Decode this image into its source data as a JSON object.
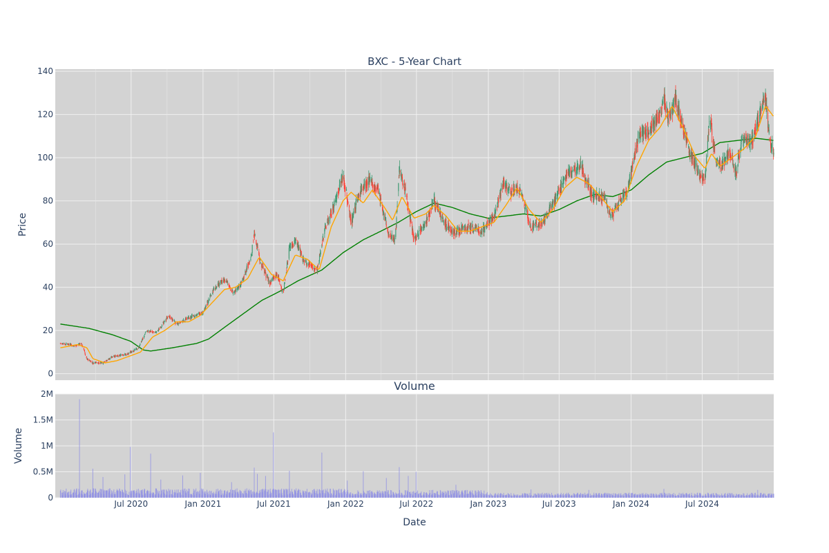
{
  "chart_data": [
    {
      "type": "candlestick",
      "title": "BXC - 5-Year Chart",
      "ylabel": "Price",
      "ylim": [
        -3,
        141
      ],
      "y_ticks": [
        0,
        20,
        40,
        60,
        80,
        100,
        120,
        140
      ],
      "x_range": [
        "2020-01-02",
        "2024-12-31"
      ],
      "grid": true,
      "legend": "none",
      "colors": {
        "increasing": "#3d9970",
        "decreasing": "#ff4136",
        "ma_short": "#ffa500",
        "ma_long": "#008000",
        "plot_bg": "#d3d3d3",
        "grid": "#f0f0f0"
      },
      "price_anchors": [
        [
          "2020-01-02",
          14
        ],
        [
          "2020-02-10",
          13
        ],
        [
          "2020-02-25",
          14
        ],
        [
          "2020-03-10",
          7
        ],
        [
          "2020-03-25",
          5
        ],
        [
          "2020-04-20",
          5
        ],
        [
          "2020-05-15",
          8
        ],
        [
          "2020-06-20",
          9
        ],
        [
          "2020-07-20",
          12
        ],
        [
          "2020-08-10",
          20
        ],
        [
          "2020-09-05",
          19
        ],
        [
          "2020-10-05",
          27
        ],
        [
          "2020-10-25",
          23
        ],
        [
          "2020-11-25",
          26
        ],
        [
          "2020-12-31",
          28
        ],
        [
          "2021-01-25",
          38
        ],
        [
          "2021-02-25",
          44
        ],
        [
          "2021-03-20",
          37
        ],
        [
          "2021-04-10",
          42
        ],
        [
          "2021-05-05",
          55
        ],
        [
          "2021-05-12",
          66
        ],
        [
          "2021-05-25",
          53
        ],
        [
          "2021-06-20",
          42
        ],
        [
          "2021-07-10",
          46
        ],
        [
          "2021-07-25",
          37
        ],
        [
          "2021-08-10",
          58
        ],
        [
          "2021-08-28",
          61
        ],
        [
          "2021-09-15",
          52
        ],
        [
          "2021-10-05",
          50
        ],
        [
          "2021-10-20",
          48
        ],
        [
          "2021-11-10",
          68
        ],
        [
          "2021-12-10",
          82
        ],
        [
          "2021-12-25",
          93
        ],
        [
          "2022-01-15",
          70
        ],
        [
          "2022-02-05",
          84
        ],
        [
          "2022-03-01",
          90
        ],
        [
          "2022-03-25",
          85
        ],
        [
          "2022-04-20",
          65
        ],
        [
          "2022-05-08",
          62
        ],
        [
          "2022-05-18",
          95
        ],
        [
          "2022-06-05",
          82
        ],
        [
          "2022-06-25",
          62
        ],
        [
          "2022-07-25",
          70
        ],
        [
          "2022-08-15",
          80
        ],
        [
          "2022-09-10",
          70
        ],
        [
          "2022-10-01",
          65
        ],
        [
          "2022-11-05",
          68
        ],
        [
          "2022-12-15",
          66
        ],
        [
          "2023-01-15",
          73
        ],
        [
          "2023-02-10",
          89
        ],
        [
          "2023-02-25",
          84
        ],
        [
          "2023-03-20",
          86
        ],
        [
          "2023-04-20",
          68
        ],
        [
          "2023-05-20",
          70
        ],
        [
          "2023-06-20",
          80
        ],
        [
          "2023-07-20",
          92
        ],
        [
          "2023-08-25",
          96
        ],
        [
          "2023-09-25",
          82
        ],
        [
          "2023-10-25",
          82
        ],
        [
          "2023-11-10",
          72
        ],
        [
          "2023-11-25",
          78
        ],
        [
          "2023-12-25",
          86
        ],
        [
          "2024-01-20",
          110
        ],
        [
          "2024-02-15",
          112
        ],
        [
          "2024-03-15",
          120
        ],
        [
          "2024-03-25",
          128
        ],
        [
          "2024-04-05",
          118
        ],
        [
          "2024-04-25",
          127
        ],
        [
          "2024-05-15",
          112
        ],
        [
          "2024-05-30",
          102
        ],
        [
          "2024-06-25",
          92
        ],
        [
          "2024-07-08",
          88
        ],
        [
          "2024-07-20",
          120
        ],
        [
          "2024-08-05",
          98
        ],
        [
          "2024-08-20",
          96
        ],
        [
          "2024-09-10",
          103
        ],
        [
          "2024-09-25",
          92
        ],
        [
          "2024-10-10",
          108
        ],
        [
          "2024-11-05",
          108
        ],
        [
          "2024-11-25",
          120
        ],
        [
          "2024-12-10",
          128
        ],
        [
          "2024-12-20",
          108
        ],
        [
          "2024-12-31",
          103
        ]
      ],
      "ma_short_anchors": [
        [
          "2020-01-02",
          12
        ],
        [
          "2020-02-15",
          13.5
        ],
        [
          "2020-03-10",
          12
        ],
        [
          "2020-03-25",
          7
        ],
        [
          "2020-04-25",
          5
        ],
        [
          "2020-05-25",
          6
        ],
        [
          "2020-06-25",
          8
        ],
        [
          "2020-07-25",
          10
        ],
        [
          "2020-08-25",
          17
        ],
        [
          "2020-09-25",
          20
        ],
        [
          "2020-10-25",
          24
        ],
        [
          "2020-11-25",
          24
        ],
        [
          "2020-12-25",
          27
        ],
        [
          "2021-01-25",
          33
        ],
        [
          "2021-02-25",
          39
        ],
        [
          "2021-03-25",
          40
        ],
        [
          "2021-04-25",
          44
        ],
        [
          "2021-05-25",
          54
        ],
        [
          "2021-06-25",
          46
        ],
        [
          "2021-07-25",
          43
        ],
        [
          "2021-08-25",
          55
        ],
        [
          "2021-09-25",
          53
        ],
        [
          "2021-10-25",
          48
        ],
        [
          "2021-11-25",
          68
        ],
        [
          "2021-12-25",
          80
        ],
        [
          "2022-01-15",
          84
        ],
        [
          "2022-02-15",
          79
        ],
        [
          "2022-03-10",
          85
        ],
        [
          "2022-04-10",
          77
        ],
        [
          "2022-05-01",
          71
        ],
        [
          "2022-05-25",
          82
        ],
        [
          "2022-06-25",
          72
        ],
        [
          "2022-07-25",
          74
        ],
        [
          "2022-08-15",
          78
        ],
        [
          "2022-09-15",
          73
        ],
        [
          "2022-10-15",
          66
        ],
        [
          "2022-11-15",
          66
        ],
        [
          "2022-12-15",
          68
        ],
        [
          "2023-01-15",
          70
        ],
        [
          "2023-02-15",
          78
        ],
        [
          "2023-03-15",
          86
        ],
        [
          "2023-04-15",
          76
        ],
        [
          "2023-05-15",
          70
        ],
        [
          "2023-06-15",
          76
        ],
        [
          "2023-07-15",
          86
        ],
        [
          "2023-08-15",
          91
        ],
        [
          "2023-09-15",
          88
        ],
        [
          "2023-10-15",
          82
        ],
        [
          "2023-11-15",
          75
        ],
        [
          "2023-12-15",
          80
        ],
        [
          "2024-01-15",
          96
        ],
        [
          "2024-02-15",
          108
        ],
        [
          "2024-03-15",
          114
        ],
        [
          "2024-04-15",
          124
        ],
        [
          "2024-05-15",
          113
        ],
        [
          "2024-06-15",
          100
        ],
        [
          "2024-07-08",
          95
        ],
        [
          "2024-07-25",
          102
        ],
        [
          "2024-08-15",
          96
        ],
        [
          "2024-09-15",
          100
        ],
        [
          "2024-10-15",
          104
        ],
        [
          "2024-11-15",
          110
        ],
        [
          "2024-12-10",
          124
        ],
        [
          "2024-12-31",
          119
        ]
      ],
      "ma_long_anchors": [
        [
          "2020-01-02",
          23
        ],
        [
          "2020-03-15",
          21
        ],
        [
          "2020-05-15",
          18
        ],
        [
          "2020-06-30",
          15
        ],
        [
          "2020-08-01",
          11
        ],
        [
          "2020-08-20",
          10.5
        ],
        [
          "2020-10-15",
          12
        ],
        [
          "2020-12-15",
          14
        ],
        [
          "2021-01-15",
          16
        ],
        [
          "2021-03-01",
          22
        ],
        [
          "2021-05-01",
          30
        ],
        [
          "2021-06-01",
          34
        ],
        [
          "2021-07-15",
          38
        ],
        [
          "2021-09-01",
          43
        ],
        [
          "2021-11-01",
          48
        ],
        [
          "2021-12-25",
          56
        ],
        [
          "2022-02-15",
          62
        ],
        [
          "2022-04-01",
          66
        ],
        [
          "2022-05-15",
          70
        ],
        [
          "2022-06-30",
          75
        ],
        [
          "2022-08-15",
          79
        ],
        [
          "2022-09-30",
          77
        ],
        [
          "2022-11-15",
          74
        ],
        [
          "2022-12-31",
          72
        ],
        [
          "2023-02-15",
          73
        ],
        [
          "2023-04-01",
          74
        ],
        [
          "2023-05-15",
          73
        ],
        [
          "2023-07-01",
          76
        ],
        [
          "2023-08-15",
          80
        ],
        [
          "2023-09-30",
          83
        ],
        [
          "2023-11-15",
          82
        ],
        [
          "2024-01-01",
          85
        ],
        [
          "2024-02-15",
          92
        ],
        [
          "2024-04-01",
          98
        ],
        [
          "2024-05-15",
          100
        ],
        [
          "2024-07-01",
          102
        ],
        [
          "2024-08-15",
          107
        ],
        [
          "2024-10-01",
          108
        ],
        [
          "2024-11-15",
          109
        ],
        [
          "2024-12-31",
          108
        ]
      ]
    },
    {
      "type": "bar",
      "title": "Volume",
      "xlabel": "Date",
      "ylabel": "Volume",
      "ylim": [
        0,
        2000000
      ],
      "y_ticks": [
        0,
        500000,
        1000000,
        1500000,
        2000000
      ],
      "y_tick_labels": [
        "0",
        "0.5M",
        "1M",
        "1.5M",
        "2M"
      ],
      "x_tick_dates": [
        "2020-07-01",
        "2021-01-01",
        "2021-07-01",
        "2022-01-01",
        "2022-07-01",
        "2023-01-01",
        "2023-07-01",
        "2024-01-01",
        "2024-07-01"
      ],
      "x_tick_labels": [
        "Jul 2020",
        "Jan 2021",
        "Jul 2021",
        "Jan 2022",
        "Jul 2022",
        "Jan 2023",
        "Jul 2023",
        "Jan 2024",
        "Jul 2024"
      ],
      "color": "#8c8ce6",
      "volume_spikes": [
        [
          "2020-02-20",
          1900000
        ],
        [
          "2020-03-25",
          560000
        ],
        [
          "2020-04-20",
          400000
        ],
        [
          "2020-06-15",
          450000
        ],
        [
          "2020-06-29",
          980000
        ],
        [
          "2020-08-20",
          850000
        ],
        [
          "2020-09-15",
          350000
        ],
        [
          "2020-11-10",
          430000
        ],
        [
          "2020-12-25",
          480000
        ],
        [
          "2021-03-15",
          300000
        ],
        [
          "2021-04-25",
          500000
        ],
        [
          "2021-05-12",
          580000
        ],
        [
          "2021-05-20",
          460000
        ],
        [
          "2021-06-10",
          420000
        ],
        [
          "2021-06-30",
          1260000
        ],
        [
          "2021-08-10",
          520000
        ],
        [
          "2021-08-28",
          560000
        ],
        [
          "2021-10-10",
          300000
        ],
        [
          "2021-11-01",
          870000
        ],
        [
          "2021-12-05",
          260000
        ],
        [
          "2022-01-05",
          330000
        ],
        [
          "2022-02-15",
          510000
        ],
        [
          "2022-03-20",
          350000
        ],
        [
          "2022-04-15",
          380000
        ],
        [
          "2022-05-18",
          590000
        ],
        [
          "2022-06-10",
          420000
        ],
        [
          "2022-06-30",
          500000
        ],
        [
          "2022-08-20",
          270000
        ],
        [
          "2022-10-10",
          250000
        ],
        [
          "2023-01-15",
          180000
        ],
        [
          "2023-04-20",
          160000
        ],
        [
          "2023-09-15",
          150000
        ],
        [
          "2023-12-10",
          190000
        ],
        [
          "2024-03-25",
          170000
        ],
        [
          "2024-08-10",
          240000
        ],
        [
          "2024-11-20",
          150000
        ]
      ]
    }
  ]
}
